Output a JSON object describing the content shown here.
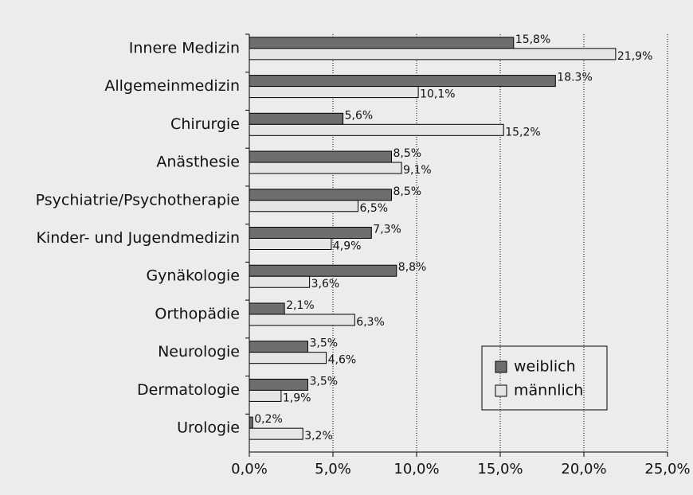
{
  "chart_data": {
    "type": "bar",
    "orientation": "horizontal",
    "categories": [
      "Innere Medizin",
      "Allgemeinmedizin",
      "Chirurgie",
      "Anästhesie",
      "Psychiatrie/Psychotherapie",
      "Kinder- und Jugendmedizin",
      "Gynäkologie",
      "Orthopädie",
      "Neurologie",
      "Dermatologie",
      "Urologie"
    ],
    "series": [
      {
        "name": "weiblich",
        "color": "#6e6e6e",
        "values": [
          15.8,
          18.3,
          5.6,
          8.5,
          8.5,
          7.3,
          8.8,
          2.1,
          3.5,
          3.5,
          0.2
        ],
        "value_labels": [
          "15,8%",
          "18.3%",
          "5,6%",
          "8,5%",
          "8,5%",
          "7,3%",
          "8,8%",
          "2,1%",
          "3,5%",
          "3,5%",
          "0,2%"
        ]
      },
      {
        "name": "männlich",
        "color": "#e6e6e6",
        "values": [
          21.9,
          10.1,
          15.2,
          9.1,
          6.5,
          4.9,
          3.6,
          6.3,
          4.6,
          1.9,
          3.2
        ],
        "value_labels": [
          "21,9%",
          "10,1%",
          "15,2%",
          "9,1%",
          "6,5%",
          "4,9%",
          "3,6%",
          "6,3%",
          "4,6%",
          "1,9%",
          "3,2%"
        ]
      }
    ],
    "xlim": [
      0,
      25
    ],
    "xticks": [
      {
        "value": 0,
        "label": "0,0%"
      },
      {
        "value": 5,
        "label": "5,0%"
      },
      {
        "value": 10,
        "label": "10,0%"
      },
      {
        "value": 15,
        "label": "15,0%"
      },
      {
        "value": 20,
        "label": "20,0%"
      },
      {
        "value": 25,
        "label": "25,0%"
      }
    ],
    "grid": true,
    "legend": "lower right"
  }
}
